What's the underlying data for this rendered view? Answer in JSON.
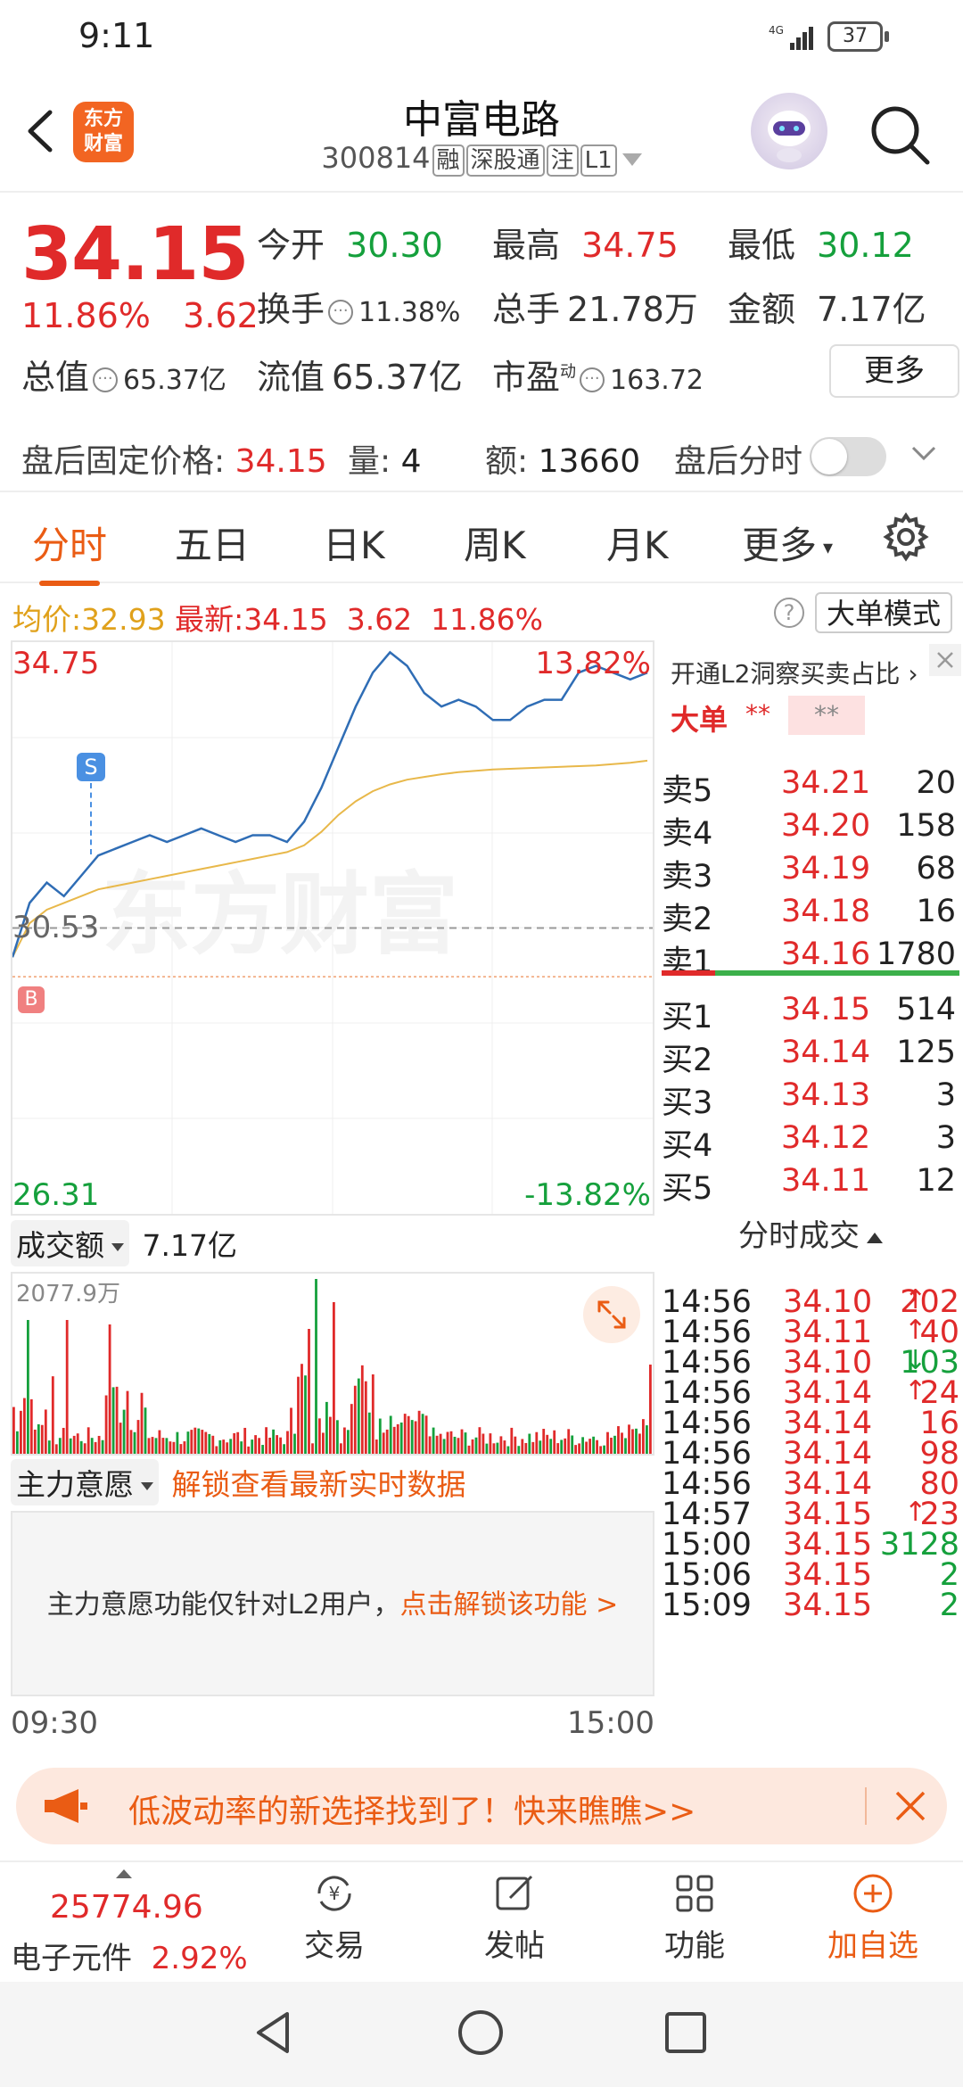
{
  "status": {
    "time": "9:11",
    "signal": "4G",
    "battery": "37"
  },
  "header": {
    "logo_line1": "东方",
    "logo_line2": "财富",
    "title": "中富电路",
    "code": "300814",
    "tags": [
      "融",
      "深股通",
      "注",
      "L1"
    ]
  },
  "quote": {
    "price": "34.15",
    "change_pct": "11.86%",
    "change": "3.62",
    "open_label": "今开",
    "open": "30.30",
    "high_label": "最高",
    "high": "34.75",
    "low_label": "最低",
    "low": "30.12",
    "turnover_label": "换手",
    "turnover": "11.38%",
    "volume_label": "总手",
    "volume": "21.78万",
    "amount_label": "金额",
    "amount": "7.17亿",
    "mktcap_label": "总值",
    "mktcap": "65.37亿",
    "float_label": "流值",
    "float": "65.37亿",
    "pe_label": "市盈",
    "pe_sup": "动",
    "pe": "163.72",
    "more": "更多"
  },
  "after_hours": {
    "label": "盘后固定价格:",
    "price": "34.15",
    "vol_label": "量:",
    "vol": "4",
    "amt_label": "额:",
    "amt": "13660",
    "timeshare_label": "盘后分时"
  },
  "tabs": [
    "分时",
    "五日",
    "日K",
    "周K",
    "月K",
    "更多"
  ],
  "avg_line": {
    "avg_label": "均价:",
    "avg": "32.93",
    "last_label": "最新:",
    "last": "34.15",
    "chg": "3.62",
    "pct": "11.86%",
    "mode": "大单模式"
  },
  "chart": {
    "top_price": "34.75",
    "top_pct": "13.82%",
    "mid_price": "30.53",
    "bottom_price": "26.31",
    "bottom_pct": "-13.82%",
    "marker_s": "S",
    "marker_b": "B",
    "watermark": "东方财富",
    "start_time": "09:30",
    "end_time": "15:00"
  },
  "chart_data": {
    "type": "line",
    "ylim": [
      26.31,
      34.75
    ],
    "prev_close": 30.53,
    "series": [
      {
        "values": [
          30.1,
          30.9,
          31.2,
          31.0,
          31.3,
          31.6,
          31.7,
          31.8,
          31.9,
          31.8,
          31.9,
          32.0,
          31.9,
          31.8,
          31.9,
          31.9,
          31.8,
          32.1,
          32.6,
          33.2,
          33.8,
          34.3,
          34.6,
          34.4,
          34.0,
          33.8,
          33.9,
          33.8,
          33.6,
          33.6,
          33.8,
          33.9,
          33.9,
          34.3,
          34.4,
          34.3,
          34.2,
          34.3
        ]
      },
      {
        "values": [
          30.1,
          30.6,
          30.8,
          30.9,
          31.0,
          31.1,
          31.15,
          31.2,
          31.25,
          31.3,
          31.35,
          31.4,
          31.45,
          31.5,
          31.55,
          31.6,
          31.65,
          31.75,
          31.95,
          32.2,
          32.4,
          32.55,
          32.65,
          32.72,
          32.76,
          32.8,
          32.83,
          32.85,
          32.87,
          32.88,
          32.89,
          32.9,
          32.91,
          32.92,
          32.93,
          32.95,
          32.97,
          33.0
        ]
      }
    ]
  },
  "volume": {
    "label": "成交额",
    "total": "7.17亿",
    "max_label": "2077.9万"
  },
  "zhuli": {
    "label": "主力意愿",
    "unlock": "解锁查看最新实时数据",
    "notice": "主力意愿功能仅针对L2用户，",
    "link": "点击解锁该功能 >"
  },
  "orderbook": {
    "l2_label": "开通L2洞察买卖占比",
    "big_label": "大单",
    "big_stars": "**",
    "big_stars2": "**",
    "asks": [
      {
        "k": "卖5",
        "p": "34.21",
        "n": "20"
      },
      {
        "k": "卖4",
        "p": "34.20",
        "n": "158"
      },
      {
        "k": "卖3",
        "p": "34.19",
        "n": "68"
      },
      {
        "k": "卖2",
        "p": "34.18",
        "n": "16"
      },
      {
        "k": "卖1",
        "p": "34.16",
        "n": "1780"
      }
    ],
    "bids": [
      {
        "k": "买1",
        "p": "34.15",
        "n": "514"
      },
      {
        "k": "买2",
        "p": "34.14",
        "n": "125"
      },
      {
        "k": "买3",
        "p": "34.13",
        "n": "3"
      },
      {
        "k": "买4",
        "p": "34.12",
        "n": "3"
      },
      {
        "k": "买5",
        "p": "34.11",
        "n": "12"
      }
    ]
  },
  "ticks": {
    "title": "分时成交",
    "rows": [
      {
        "t": "14:56",
        "p": "34.10",
        "a": "↑",
        "v": "202",
        "pc": "red",
        "vc": "red"
      },
      {
        "t": "14:56",
        "p": "34.11",
        "a": "↑",
        "v": "40",
        "pc": "red",
        "vc": "red"
      },
      {
        "t": "14:56",
        "p": "34.10",
        "a": "↓",
        "v": "103",
        "pc": "red",
        "vc": "green"
      },
      {
        "t": "14:56",
        "p": "34.14",
        "a": "↑",
        "v": "24",
        "pc": "red",
        "vc": "red"
      },
      {
        "t": "14:56",
        "p": "34.14",
        "a": "",
        "v": "16",
        "pc": "red",
        "vc": "red"
      },
      {
        "t": "14:56",
        "p": "34.14",
        "a": "",
        "v": "98",
        "pc": "red",
        "vc": "red"
      },
      {
        "t": "14:56",
        "p": "34.14",
        "a": "",
        "v": "80",
        "pc": "red",
        "vc": "red"
      },
      {
        "t": "14:57",
        "p": "34.15",
        "a": "↑",
        "v": "23",
        "pc": "red",
        "vc": "red"
      },
      {
        "t": "15:00",
        "p": "34.15",
        "a": "",
        "v": "3128",
        "pc": "red",
        "vc": "green"
      },
      {
        "t": "15:06",
        "p": "34.15",
        "a": "",
        "v": "2",
        "pc": "red",
        "vc": "green"
      },
      {
        "t": "15:09",
        "p": "34.15",
        "a": "",
        "v": "2",
        "pc": "red",
        "vc": "green"
      }
    ]
  },
  "banner": {
    "text": "低波动率的新选择找到了！快来瞧瞧>>"
  },
  "bottom": {
    "index_value": "25774.96",
    "index_name": "电子元件",
    "index_pct": "2.92%",
    "nav": [
      "交易",
      "发帖",
      "功能",
      "加自选"
    ]
  },
  "colors": {
    "up": "#e02a2a",
    "down": "#15a03c",
    "accent": "#ea5c14",
    "avg": "#e0a11b",
    "price_line": "#2f6db5"
  }
}
